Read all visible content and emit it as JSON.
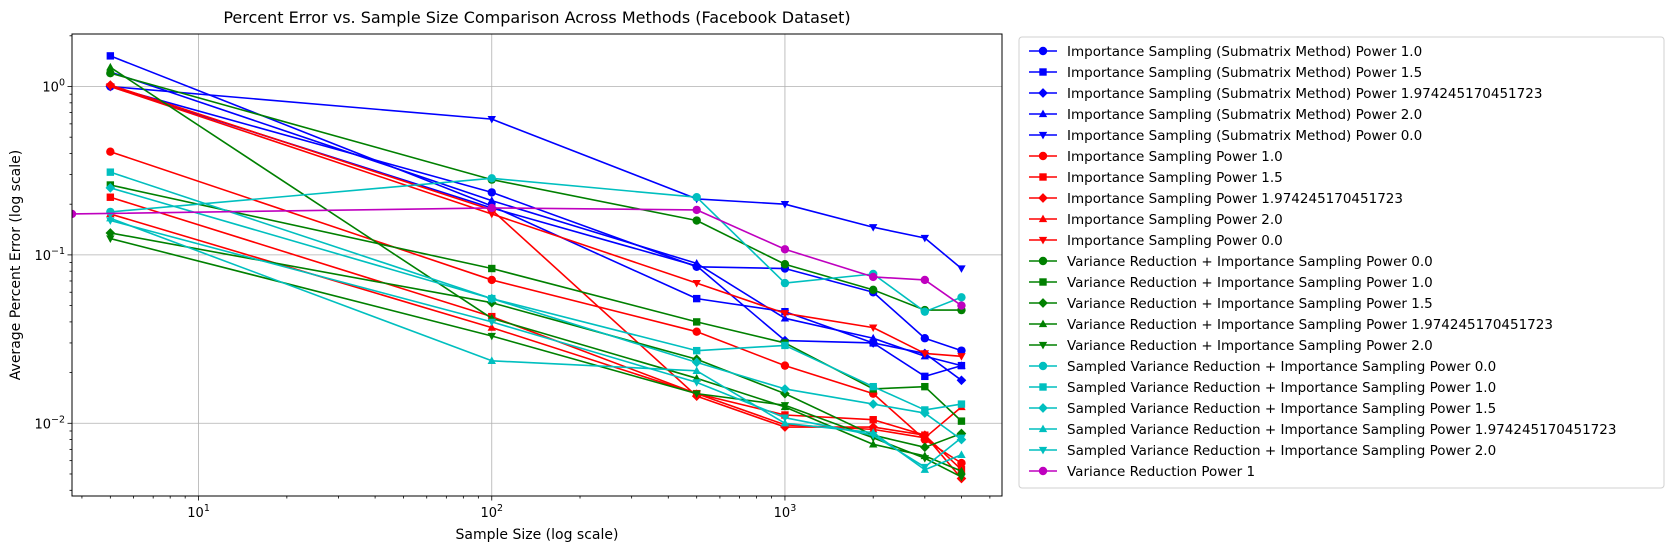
{
  "chart_data": {
    "type": "line",
    "title": "Percent Error vs. Sample Size Comparison Across Methods (Facebook Dataset)",
    "xlabel": "Sample Size (log scale)",
    "ylabel": "Average Percent Error (log scale)",
    "x_scale": "log",
    "y_scale": "log",
    "xlim": [
      3.7,
      5500
    ],
    "ylim": [
      0.0037,
      2.05
    ],
    "xticks": [
      10,
      100,
      1000
    ],
    "yticks": [
      0.01,
      0.1,
      1
    ],
    "xtick_labels": [
      {
        "base": "10",
        "exp": "1"
      },
      {
        "base": "10",
        "exp": "2"
      },
      {
        "base": "10",
        "exp": "3"
      }
    ],
    "ytick_labels": [
      {
        "base": "10",
        "exp": "−2"
      },
      {
        "base": "10",
        "exp": "−1"
      },
      {
        "base": "10",
        "exp": "0"
      }
    ],
    "grid": true,
    "legend_position": "outside-right",
    "series": [
      {
        "name": "Importance Sampling (Submatrix Method) Power 1.0",
        "color": "#0000ff",
        "marker": "circle",
        "x": [
          5,
          100,
          500,
          1000,
          2000,
          3000,
          4000
        ],
        "y": [
          1.0,
          0.235,
          0.085,
          0.083,
          0.06,
          0.032,
          0.027
        ]
      },
      {
        "name": "Importance Sampling (Submatrix Method) Power 1.5",
        "color": "#0000ff",
        "marker": "square",
        "x": [
          5,
          100,
          500,
          1000,
          2000,
          3000,
          4000
        ],
        "y": [
          1.52,
          0.195,
          0.055,
          0.046,
          0.03,
          0.019,
          0.022
        ]
      },
      {
        "name": "Importance Sampling (Submatrix Method) Power 1.974245170451723",
        "color": "#0000ff",
        "marker": "diamond",
        "x": [
          5,
          100,
          500,
          1000,
          2000,
          3000,
          4000
        ],
        "y": [
          1.0,
          0.19,
          0.086,
          0.031,
          0.03,
          0.026,
          0.018
        ]
      },
      {
        "name": "Importance Sampling (Submatrix Method) Power 2.0",
        "color": "#0000ff",
        "marker": "triangle-up",
        "x": [
          5,
          100,
          500,
          1000,
          2000,
          3000,
          4000
        ],
        "y": [
          1.22,
          0.21,
          0.089,
          0.042,
          0.032,
          0.025,
          0.022
        ]
      },
      {
        "name": "Importance Sampling (Submatrix Method) Power 0.0",
        "color": "#0000ff",
        "marker": "triangle-down",
        "x": [
          5,
          100,
          500,
          1000,
          2000,
          3000,
          4000
        ],
        "y": [
          1.0,
          0.64,
          0.215,
          0.2,
          0.146,
          0.126,
          0.083
        ]
      },
      {
        "name": "Importance Sampling Power 1.0",
        "color": "#ff0000",
        "marker": "circle",
        "x": [
          5,
          100,
          500,
          1000,
          2000,
          3000,
          4000
        ],
        "y": [
          0.41,
          0.071,
          0.035,
          0.022,
          0.015,
          0.008,
          0.0058
        ]
      },
      {
        "name": "Importance Sampling Power 1.5",
        "color": "#ff0000",
        "marker": "square",
        "x": [
          5,
          100,
          500,
          1000,
          2000,
          3000,
          4000
        ],
        "y": [
          0.22,
          0.043,
          0.015,
          0.0112,
          0.0105,
          0.0085,
          0.0053
        ]
      },
      {
        "name": "Importance Sampling Power 1.974245170451723",
        "color": "#ff0000",
        "marker": "diamond",
        "x": [
          5,
          100,
          500,
          1000,
          2000,
          3000,
          4000
        ],
        "y": [
          1.02,
          0.185,
          0.0145,
          0.0095,
          0.0095,
          0.0085,
          0.0047
        ]
      },
      {
        "name": "Importance Sampling Power 2.0",
        "color": "#ff0000",
        "marker": "triangle-up",
        "x": [
          5,
          100,
          500,
          1000,
          2000,
          3000,
          4000
        ],
        "y": [
          0.175,
          0.037,
          0.015,
          0.0098,
          0.0092,
          0.0082,
          0.0125
        ]
      },
      {
        "name": "Importance Sampling Power 0.0",
        "color": "#ff0000",
        "marker": "triangle-down",
        "x": [
          5,
          100,
          500,
          1000,
          2000,
          3000,
          4000
        ],
        "y": [
          1.0,
          0.175,
          0.068,
          0.045,
          0.037,
          0.026,
          0.025
        ]
      },
      {
        "name": "Variance Reduction + Importance Sampling Power 0.0",
        "color": "#008000",
        "marker": "circle",
        "x": [
          5,
          100,
          500,
          1000,
          2000,
          3000,
          4000
        ],
        "y": [
          1.2,
          0.28,
          0.16,
          0.088,
          0.062,
          0.047,
          0.047
        ]
      },
      {
        "name": "Variance Reduction + Importance Sampling Power 1.0",
        "color": "#008000",
        "marker": "square",
        "x": [
          5,
          100,
          500,
          1000,
          2000,
          3000,
          4000
        ],
        "y": [
          0.26,
          0.083,
          0.04,
          0.03,
          0.016,
          0.0165,
          0.0103
        ]
      },
      {
        "name": "Variance Reduction + Importance Sampling Power 1.5",
        "color": "#008000",
        "marker": "diamond",
        "x": [
          5,
          100,
          500,
          1000,
          2000,
          3000,
          4000
        ],
        "y": [
          0.135,
          0.052,
          0.024,
          0.015,
          0.0085,
          0.0072,
          0.0087
        ]
      },
      {
        "name": "Variance Reduction + Importance Sampling Power 1.974245170451723",
        "color": "#008000",
        "marker": "triangle-up",
        "x": [
          5,
          100,
          500,
          1000,
          2000,
          3000,
          4000
        ],
        "y": [
          1.3,
          0.042,
          0.0185,
          0.0125,
          0.0075,
          0.0064,
          0.0052
        ]
      },
      {
        "name": "Variance Reduction + Importance Sampling Power 2.0",
        "color": "#008000",
        "marker": "triangle-down",
        "x": [
          5,
          100,
          500,
          1000,
          2000,
          3000,
          4000
        ],
        "y": [
          0.125,
          0.033,
          0.015,
          0.0128,
          0.0082,
          0.0062,
          0.0048
        ]
      },
      {
        "name": "Sampled Variance Reduction + Importance Sampling Power 0.0",
        "color": "#00bfbf",
        "marker": "circle",
        "x": [
          5,
          100,
          500,
          1000,
          2000,
          3000,
          4000
        ],
        "y": [
          0.18,
          0.285,
          0.22,
          0.068,
          0.077,
          0.046,
          0.056
        ]
      },
      {
        "name": "Sampled Variance Reduction + Importance Sampling Power 1.0",
        "color": "#00bfbf",
        "marker": "square",
        "x": [
          5,
          100,
          500,
          1000,
          2000,
          3000,
          4000
        ],
        "y": [
          0.31,
          0.055,
          0.027,
          0.029,
          0.0165,
          0.012,
          0.013
        ]
      },
      {
        "name": "Sampled Variance Reduction + Importance Sampling Power 1.5",
        "color": "#00bfbf",
        "marker": "diamond",
        "x": [
          5,
          100,
          500,
          1000,
          2000,
          3000,
          4000
        ],
        "y": [
          0.25,
          0.055,
          0.023,
          0.016,
          0.013,
          0.0115,
          0.008
        ]
      },
      {
        "name": "Sampled Variance Reduction + Importance Sampling Power 1.974245170451723",
        "color": "#00bfbf",
        "marker": "triangle-up",
        "x": [
          5,
          100,
          500,
          1000,
          2000,
          3000,
          4000
        ],
        "y": [
          0.165,
          0.0235,
          0.0205,
          0.01,
          0.0088,
          0.0053,
          0.0065
        ]
      },
      {
        "name": "Sampled Variance Reduction + Importance Sampling Power 2.0",
        "color": "#00bfbf",
        "marker": "triangle-down",
        "x": [
          5,
          100,
          500,
          1000,
          2000,
          3000,
          4000
        ],
        "y": [
          0.16,
          0.04,
          0.0175,
          0.0108,
          0.0085,
          0.0055,
          0.0082
        ]
      },
      {
        "name": "Variance Reduction Power 1",
        "color": "#bf00bf",
        "marker": "circle",
        "x": [
          3.7,
          100,
          500,
          1000,
          2000,
          3000,
          4000
        ],
        "y": [
          0.175,
          0.19,
          0.185,
          0.108,
          0.074,
          0.071,
          0.05
        ]
      }
    ]
  }
}
